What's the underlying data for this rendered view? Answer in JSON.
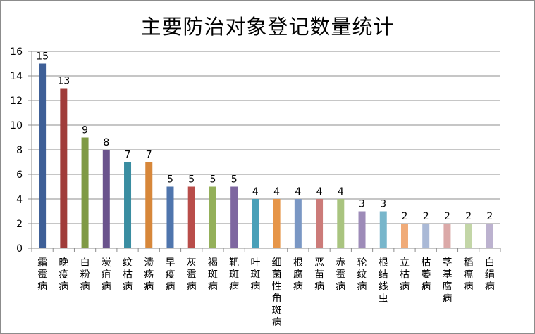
{
  "chart_data": {
    "type": "bar",
    "title": "主要防治对象登记数量统计",
    "xlabel": "",
    "ylabel": "",
    "ylim": [
      0,
      16
    ],
    "yticks": [
      0,
      2,
      4,
      6,
      8,
      10,
      12,
      14,
      16
    ],
    "grid": true,
    "legend": "none",
    "categories": [
      "霜霉病",
      "晚疫病",
      "白粉病",
      "炭疽病",
      "纹枯病",
      "溃疡病",
      "早疫病",
      "灰霉病",
      "褐斑病",
      "靶斑病",
      "叶斑病",
      "细菌性角斑病",
      "根腐病",
      "恶苗病",
      "赤霉病",
      "轮纹病",
      "根结线虫",
      "立枯病",
      "枯萎病",
      "茎基腐病",
      "稻瘟病",
      "白绢病"
    ],
    "values": [
      15,
      13,
      9,
      8,
      7,
      7,
      5,
      5,
      5,
      5,
      4,
      4,
      4,
      4,
      4,
      3,
      3,
      2,
      2,
      2,
      2,
      2
    ],
    "data_labels": [
      "15",
      "13",
      "9",
      "8",
      "7",
      "7",
      "5",
      "5",
      "5",
      "5",
      "4",
      "4",
      "4",
      "4",
      "4",
      "3",
      "3",
      "2",
      "2",
      "2",
      "2",
      "2"
    ],
    "colors": [
      "#3e5f97",
      "#a03c3a",
      "#7f9a45",
      "#6a538c",
      "#3a8da1",
      "#d7873a",
      "#4f75ad",
      "#b94d4a",
      "#94b05a",
      "#7e67a0",
      "#4aa0b8",
      "#e69548",
      "#7a97c4",
      "#cc7b79",
      "#a9c47f",
      "#9d8bb8",
      "#78b6cb",
      "#f0ab78",
      "#aab9d6",
      "#dba9a8",
      "#c3d6a7",
      "#bcb2cf"
    ]
  }
}
